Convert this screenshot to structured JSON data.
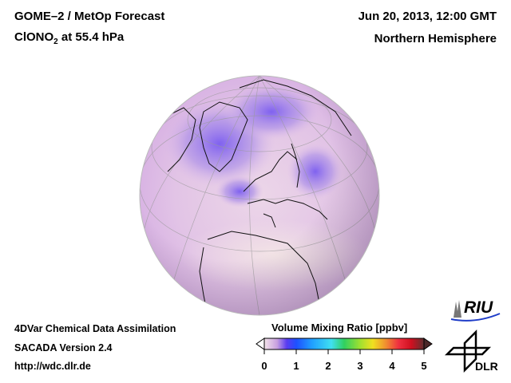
{
  "header": {
    "title_line1": "GOME–2 / MetOp Forecast",
    "species_prefix": "ClONO",
    "species_subscript": "2",
    "species_suffix": " at 55.4 hPa",
    "datetime": "Jun 20, 2013, 12:00 GMT",
    "region": "Northern Hemisphere"
  },
  "footer": {
    "line1": "4DVar Chemical Data Assimilation",
    "line2": "SACADA Version 2.4",
    "line3": "http://wdc.dlr.de"
  },
  "colorbar": {
    "title": "Volume Mixing Ratio [ppbv]",
    "ticks": [
      "0",
      "1",
      "2",
      "3",
      "4",
      "5"
    ],
    "min": 0,
    "max": 5,
    "colors": [
      "#f4e4ea",
      "#c8a0e0",
      "#5a3cf0",
      "#1e50ff",
      "#20a0ff",
      "#40e0f0",
      "#30d060",
      "#a0e030",
      "#f0e020",
      "#f09030",
      "#f03040",
      "#d01020",
      "#603030"
    ]
  },
  "logos": {
    "riu": "RIU",
    "dlr": "DLR"
  }
}
